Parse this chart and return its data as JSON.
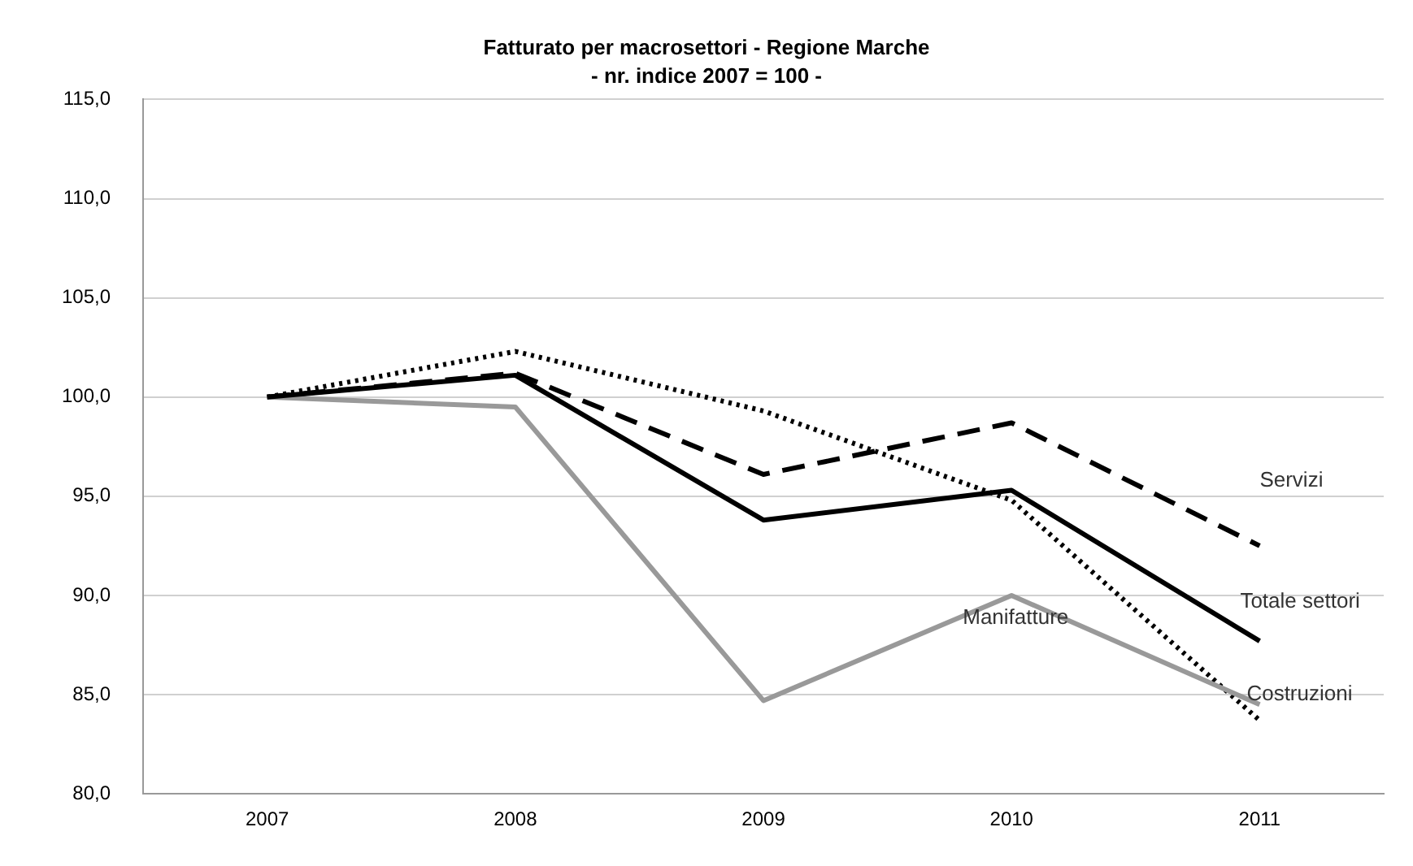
{
  "chart_data": {
    "type": "line",
    "title": "Fatturato per macrosettori - Regione Marche",
    "subtitle": "- nr. indice 2007 = 100 -",
    "categories": [
      "2007",
      "2008",
      "2009",
      "2010",
      "2011"
    ],
    "series": [
      {
        "name": "Totale settori",
        "color": "#000000",
        "line_style": "solid",
        "values": [
          100,
          101.1,
          93.8,
          95.3,
          87.7
        ]
      },
      {
        "name": "Manifatture",
        "color": "#999999",
        "line_style": "solid",
        "values": [
          100,
          99.5,
          84.7,
          90.0,
          84.5
        ]
      },
      {
        "name": "Costruzioni",
        "color": "#000000",
        "line_style": "dotted",
        "values": [
          100,
          102.3,
          99.3,
          94.8,
          83.7
        ]
      },
      {
        "name": "Servizi",
        "color": "#000000",
        "line_style": "dashed",
        "values": [
          100,
          101.2,
          96.1,
          98.7,
          92.5
        ]
      }
    ],
    "ylim": [
      80,
      115
    ],
    "yticks": [
      {
        "value": 80,
        "label": "80,0"
      },
      {
        "value": 85,
        "label": "85,0"
      },
      {
        "value": 90,
        "label": "90,0"
      },
      {
        "value": 95,
        "label": "95,0"
      },
      {
        "value": 100,
        "label": "100,0"
      },
      {
        "value": 105,
        "label": "105,0"
      },
      {
        "value": 110,
        "label": "110,0"
      },
      {
        "value": 115,
        "label": "115,0"
      }
    ],
    "grid": "y",
    "legend": false,
    "marker": "none"
  }
}
